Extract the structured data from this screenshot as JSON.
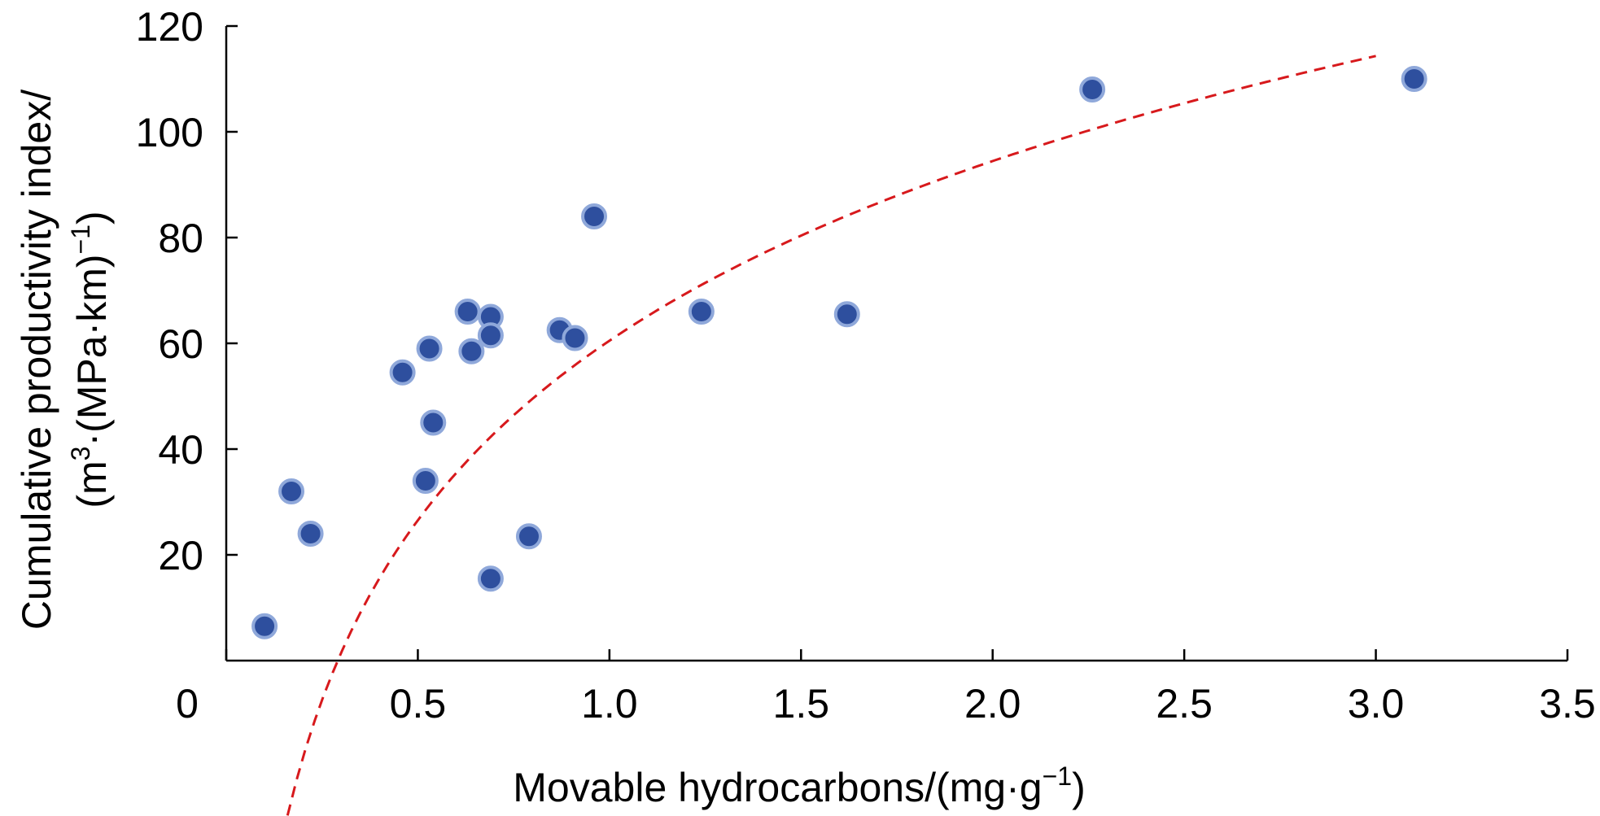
{
  "chart_data": {
    "type": "scatter",
    "xlabel": {
      "text": "Movable hydrocarbons/(mg·g",
      "sup": "−1",
      "close": ")"
    },
    "ylabel": {
      "line1": "Cumulative productivity index/",
      "line2_start": "(m",
      "line2_sup": "3",
      "line2_mid": "·(MPa·km)",
      "line2_sup2": "−1",
      "line2_end": ")"
    },
    "xlim": [
      0,
      3.5
    ],
    "ylim": [
      0,
      120
    ],
    "x_ticks": [
      0,
      0.5,
      1.0,
      1.5,
      2.0,
      2.5,
      3.0,
      3.5
    ],
    "x_tick_labels": [
      "0",
      "0.5",
      "1.0",
      "1.5",
      "2.0",
      "2.5",
      "3.0",
      "3.5"
    ],
    "y_ticks": [
      20,
      40,
      60,
      80,
      100,
      120
    ],
    "y_tick_labels": [
      "20",
      "40",
      "60",
      "80",
      "100",
      "120"
    ],
    "grid": false,
    "legend": false,
    "point_color": "#2E4F9E",
    "point_edge_color": "#8FA8DA",
    "fit_color": "#D7191C",
    "series": [
      {
        "points": [
          [
            0.1,
            6.5
          ],
          [
            0.17,
            32
          ],
          [
            0.22,
            24
          ],
          [
            0.46,
            54.5
          ],
          [
            0.53,
            59
          ],
          [
            0.52,
            34
          ],
          [
            0.54,
            45
          ],
          [
            0.63,
            66
          ],
          [
            0.64,
            58.5
          ],
          [
            0.69,
            65
          ],
          [
            0.69,
            61.5
          ],
          [
            0.69,
            15.5
          ],
          [
            0.79,
            23.5
          ],
          [
            0.87,
            62.5
          ],
          [
            0.91,
            61
          ],
          [
            0.96,
            84
          ],
          [
            1.24,
            66
          ],
          [
            1.62,
            65.5
          ],
          [
            2.26,
            108
          ],
          [
            3.1,
            110
          ]
        ]
      }
    ],
    "fit": {
      "style": "dashed",
      "model": "logarithmic",
      "a": 60.5,
      "b": 49.0,
      "x_range": [
        0.16,
        3.0
      ]
    }
  }
}
